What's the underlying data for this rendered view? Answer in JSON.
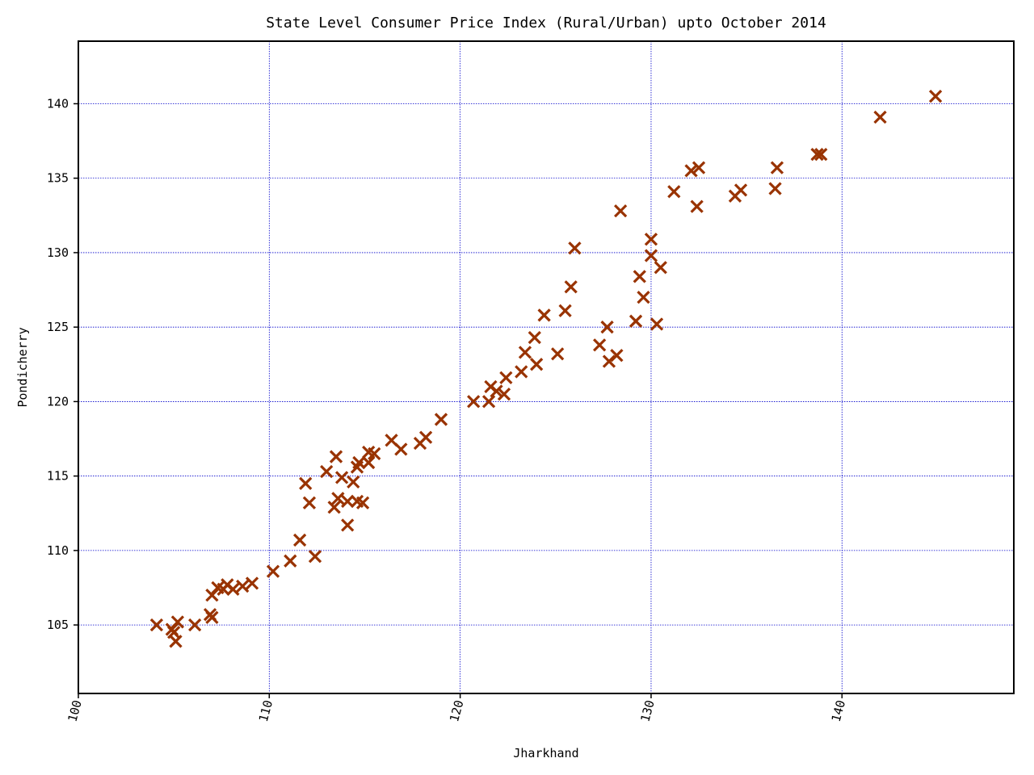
{
  "chart_data": {
    "type": "scatter",
    "title": "State Level Consumer Price Index (Rural/Urban) upto October 2014",
    "xlabel": "Jharkhand",
    "ylabel": "Pondicherry",
    "xlim": [
      100,
      149
    ],
    "ylim": [
      100.4,
      144.2
    ],
    "xticks": [
      100,
      110,
      120,
      130,
      140
    ],
    "xtick_labels": [
      "100",
      "110",
      "120",
      "130",
      "140"
    ],
    "yticks": [
      105,
      110,
      115,
      120,
      125,
      130,
      135,
      140
    ],
    "ytick_labels": [
      "105",
      "110",
      "115",
      "120",
      "125",
      "130",
      "135",
      "140"
    ],
    "grid": true,
    "marker": "x",
    "color": "#993300",
    "points": [
      [
        104.1,
        105.0
      ],
      [
        104.9,
        104.7
      ],
      [
        105.2,
        105.2
      ],
      [
        105.0,
        104.5
      ],
      [
        105.1,
        103.9
      ],
      [
        106.1,
        105.0
      ],
      [
        106.9,
        105.7
      ],
      [
        107.0,
        105.5
      ],
      [
        107.0,
        107.0
      ],
      [
        107.3,
        107.5
      ],
      [
        107.6,
        107.4
      ],
      [
        107.8,
        107.7
      ],
      [
        108.1,
        107.4
      ],
      [
        108.6,
        107.6
      ],
      [
        109.1,
        107.8
      ],
      [
        110.2,
        108.6
      ],
      [
        111.1,
        109.3
      ],
      [
        111.6,
        110.7
      ],
      [
        112.4,
        109.6
      ],
      [
        111.9,
        114.5
      ],
      [
        112.1,
        113.2
      ],
      [
        113.0,
        115.3
      ],
      [
        113.4,
        112.9
      ],
      [
        113.6,
        113.5
      ],
      [
        113.5,
        116.3
      ],
      [
        113.8,
        114.9
      ],
      [
        114.1,
        113.3
      ],
      [
        114.1,
        111.7
      ],
      [
        114.6,
        113.3
      ],
      [
        114.9,
        113.2
      ],
      [
        114.4,
        114.6
      ],
      [
        114.6,
        115.6
      ],
      [
        114.7,
        115.9
      ],
      [
        115.2,
        115.9
      ],
      [
        115.2,
        116.6
      ],
      [
        115.5,
        116.5
      ],
      [
        116.4,
        117.4
      ],
      [
        116.9,
        116.8
      ],
      [
        117.9,
        117.2
      ],
      [
        118.2,
        117.6
      ],
      [
        119.0,
        118.8
      ],
      [
        120.7,
        120.0
      ],
      [
        121.5,
        120.0
      ],
      [
        121.6,
        121.0
      ],
      [
        121.9,
        120.7
      ],
      [
        122.3,
        120.5
      ],
      [
        122.4,
        121.6
      ],
      [
        123.2,
        122.0
      ],
      [
        123.4,
        123.3
      ],
      [
        123.9,
        124.3
      ],
      [
        124.0,
        122.5
      ],
      [
        124.4,
        125.8
      ],
      [
        125.1,
        123.2
      ],
      [
        125.5,
        126.1
      ],
      [
        125.8,
        127.7
      ],
      [
        126.0,
        130.3
      ],
      [
        127.3,
        123.8
      ],
      [
        127.7,
        125.0
      ],
      [
        127.8,
        122.7
      ],
      [
        128.2,
        123.1
      ],
      [
        128.4,
        132.8
      ],
      [
        129.2,
        125.4
      ],
      [
        129.4,
        128.4
      ],
      [
        129.6,
        127.0
      ],
      [
        130.0,
        129.8
      ],
      [
        130.0,
        130.9
      ],
      [
        130.3,
        125.2
      ],
      [
        130.5,
        129.0
      ],
      [
        131.2,
        134.1
      ],
      [
        132.1,
        135.5
      ],
      [
        132.4,
        133.1
      ],
      [
        132.5,
        135.7
      ],
      [
        134.4,
        133.8
      ],
      [
        134.7,
        134.2
      ],
      [
        136.5,
        134.3
      ],
      [
        136.6,
        135.7
      ],
      [
        138.7,
        136.6
      ],
      [
        138.9,
        136.6
      ],
      [
        142.0,
        139.1
      ],
      [
        144.9,
        140.5
      ]
    ]
  }
}
